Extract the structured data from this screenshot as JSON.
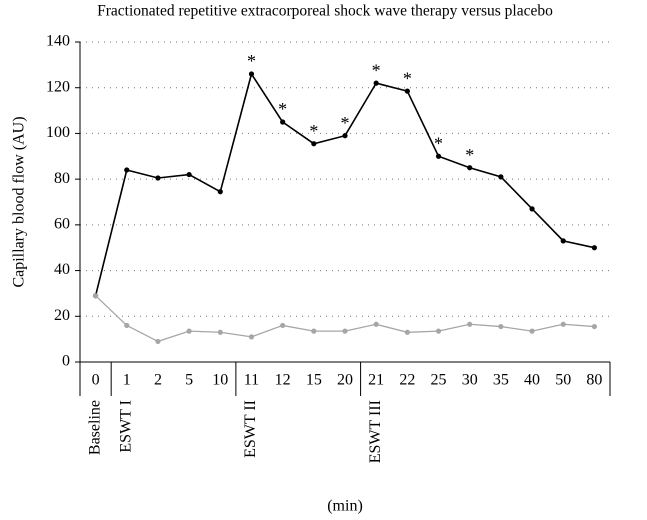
{
  "chart_data": {
    "type": "line",
    "title": "Fractionated repetitive extracorporeal shock wave therapy versus placebo",
    "y_label": "Capillary blood flow (AU)",
    "x_label": "(min)",
    "categories": [
      "0",
      "1",
      "2",
      "5",
      "10",
      "11",
      "12",
      "15",
      "20",
      "21",
      "22",
      "25",
      "30",
      "35",
      "40",
      "50",
      "80"
    ],
    "series": [
      {
        "color": "#000000",
        "values": [
          29,
          84,
          80.5,
          82,
          74.5,
          126,
          105,
          95.5,
          99,
          122,
          118.5,
          90,
          85,
          81,
          67,
          53,
          50
        ]
      },
      {
        "color": "#a6a6a6",
        "values": [
          29,
          16,
          9,
          13.5,
          13,
          11,
          16,
          13.5,
          13.5,
          16.5,
          13,
          13.5,
          16.5,
          15.5,
          13.5,
          16.5,
          15.5
        ]
      }
    ],
    "annotations": [
      {
        "x": "11",
        "text": "*"
      },
      {
        "x": "12",
        "text": "*"
      },
      {
        "x": "15",
        "text": "*"
      },
      {
        "x": "20",
        "text": "*"
      },
      {
        "x": "21",
        "text": "*"
      },
      {
        "x": "22",
        "text": "*"
      },
      {
        "x": "25",
        "text": "*"
      },
      {
        "x": "30",
        "text": "*"
      }
    ],
    "groups": [
      {
        "label": "Baseline",
        "start": "0"
      },
      {
        "label": "ESWT I",
        "start": "1"
      },
      {
        "label": "ESWT II",
        "start": "11"
      },
      {
        "label": "ESWT III",
        "start": "21"
      }
    ],
    "ylim": [
      0,
      140
    ],
    "yticks": [
      0,
      20,
      40,
      60,
      80,
      100,
      120,
      140
    ],
    "grid": true
  }
}
